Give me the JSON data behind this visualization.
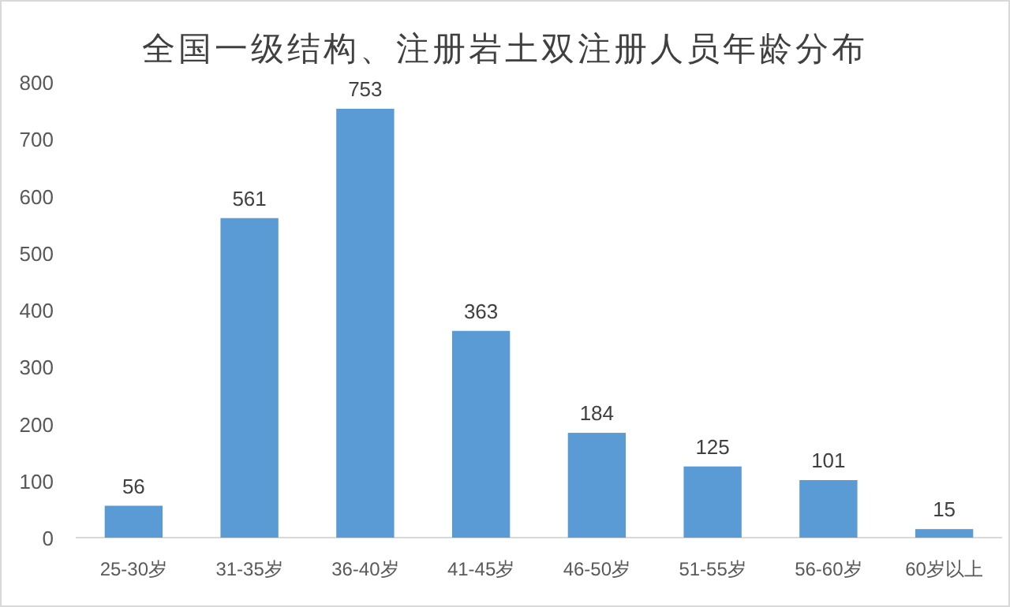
{
  "chart_data": {
    "type": "bar",
    "title": "全国一级结构、注册岩土双注册人员年龄分布",
    "categories": [
      "25-30岁",
      "31-35岁",
      "36-40岁",
      "41-45岁",
      "46-50岁",
      "51-55岁",
      "56-60岁",
      "60岁以上"
    ],
    "values": [
      56,
      561,
      753,
      363,
      184,
      125,
      101,
      15
    ],
    "color": "#5b9bd5",
    "ylim": [
      0,
      800
    ],
    "yticks": [
      0,
      100,
      200,
      300,
      400,
      500,
      600,
      700,
      800
    ],
    "data_labels": true
  }
}
